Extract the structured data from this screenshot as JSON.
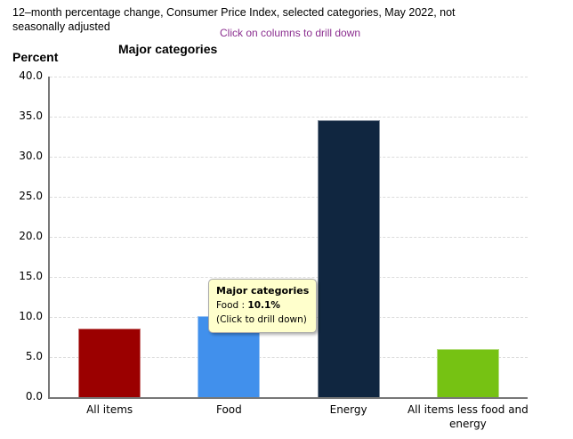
{
  "header": {
    "title": "12–month percentage change, Consumer Price Index, selected categories, May 2022, not seasonally adjusted",
    "drilldown_hint": "Click on columns to drill down"
  },
  "chart": {
    "title": "Major categories",
    "y_axis_label": "Percent"
  },
  "tooltip": {
    "title": "Major categories",
    "category": "Food",
    "separator": " : ",
    "value": "10.1%",
    "note": "(Click to drill down)"
  },
  "chart_data": {
    "type": "bar",
    "title": "Major categories",
    "categories": [
      "All items",
      "Food",
      "Energy",
      "All items less food and energy"
    ],
    "values": [
      8.6,
      10.1,
      34.6,
      6.0
    ],
    "bar_colors": [
      "#9B0000",
      "#4190EC",
      "#102640",
      "#76C213"
    ],
    "xlabel": "",
    "ylabel": "Percent",
    "ylim": [
      0,
      40
    ],
    "ytick_step": 5,
    "yticks": [
      "40.0",
      "35.0",
      "30.0",
      "25.0",
      "20.0",
      "15.0",
      "10.0",
      "5.0",
      "0.0"
    ],
    "grid": "horizontal-dashed",
    "legend": "none"
  },
  "colors": {
    "hint_purple": "#8B2E8F",
    "axis_line": "#777777",
    "gridline": "#DCDCDC",
    "tooltip_bg": "#FFFFCC",
    "tooltip_border": "#A9A9A9"
  }
}
